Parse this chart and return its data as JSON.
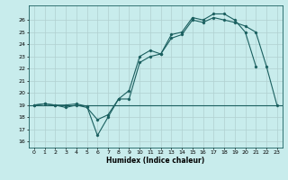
{
  "title": "",
  "xlabel": "Humidex (Indice chaleur)",
  "ylabel": "",
  "bg_color": "#c8ecec",
  "grid_color": "#b0d0d0",
  "line_color": "#1a5f5f",
  "xlim": [
    -0.5,
    23.5
  ],
  "ylim": [
    15.5,
    27.2
  ],
  "yticks": [
    16,
    17,
    18,
    19,
    20,
    21,
    22,
    23,
    24,
    25,
    26
  ],
  "xticks": [
    0,
    1,
    2,
    3,
    4,
    5,
    6,
    7,
    8,
    9,
    10,
    11,
    12,
    13,
    14,
    15,
    16,
    17,
    18,
    19,
    20,
    21,
    22,
    23
  ],
  "series2_x": [
    0,
    1,
    2,
    3,
    4,
    5,
    6,
    7,
    8,
    9,
    10,
    11,
    12,
    13,
    14,
    15,
    16,
    17,
    18,
    19,
    20,
    21
  ],
  "series2_y": [
    19.0,
    19.1,
    19.0,
    19.0,
    19.1,
    18.9,
    16.5,
    18.0,
    19.5,
    20.2,
    23.0,
    23.5,
    23.2,
    24.8,
    25.0,
    26.2,
    26.0,
    26.5,
    26.5,
    26.0,
    25.0,
    22.2
  ],
  "series3_x": [
    0,
    1,
    2,
    3,
    4,
    5,
    6,
    7,
    8,
    9,
    10,
    11,
    12,
    13,
    14,
    15,
    16,
    17,
    18,
    19,
    20,
    21,
    22,
    23
  ],
  "series3_y": [
    19.0,
    19.1,
    19.0,
    18.8,
    19.0,
    18.8,
    17.8,
    18.2,
    19.5,
    19.5,
    22.5,
    23.0,
    23.2,
    24.5,
    24.8,
    26.0,
    25.8,
    26.2,
    26.0,
    25.8,
    25.5,
    25.0,
    22.2,
    19.0
  ],
  "hline_y": 19.0
}
